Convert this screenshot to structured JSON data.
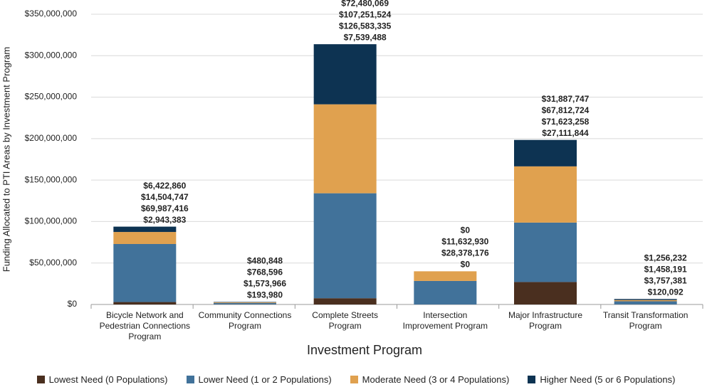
{
  "chart_data": {
    "type": "stacked-bar",
    "x_label": "Investment Program",
    "y_label": "Funding Allocated to PTI Areas by Investment Program",
    "categories": [
      "Bicycle Network and Pedestrian Connections Program",
      "Community Connections Program",
      "Complete Streets Program",
      "Intersection Improvement Program",
      "Major Infrastructure Program",
      "Transit Transformation Program"
    ],
    "series": [
      {
        "name": "Lowest Need (0 Populations)",
        "color": "#4a2f1f",
        "label_color": "#2a1b12",
        "values": [
          2943383,
          193980,
          7539488,
          0,
          27111844,
          120092
        ],
        "value_labels": [
          "$2,943,383",
          "$193,980",
          "$7,539,488",
          "$0",
          "$27,111,844",
          "$120,092"
        ]
      },
      {
        "name": "Lower Need (1 or 2 Populations)",
        "color": "#41729a",
        "label_color": "#4a7fab",
        "values": [
          69987416,
          1573966,
          126583335,
          28378176,
          71623258,
          3757381
        ],
        "value_labels": [
          "$69,987,416",
          "$1,573,966",
          "$126,583,335",
          "$28,378,176",
          "$71,623,258",
          "$3,757,381"
        ]
      },
      {
        "name": "Moderate Need (3 or 4 Populations)",
        "color": "#e0a14f",
        "label_color": "#e0a04e",
        "values": [
          14504747,
          768596,
          107251524,
          11632930,
          67812724,
          1458191
        ],
        "value_labels": [
          "$14,504,747",
          "$768,596",
          "$107,251,524",
          "$11,632,930",
          "$67,812,724",
          "$1,458,191"
        ]
      },
      {
        "name": "Higher Need (5 or 6 Populations)",
        "color": "#0d3352",
        "label_color": "#0d3352",
        "values": [
          6422860,
          480848,
          72480069,
          0,
          31887747,
          1256232
        ],
        "value_labels": [
          "$6,422,860",
          "$480,848",
          "$72,480,069",
          "$0",
          "$31,887,747",
          "$1,256,232"
        ]
      }
    ],
    "ylim": [
      0,
      350000000
    ],
    "yticks": [
      {
        "value": 0,
        "label": "$0"
      },
      {
        "value": 50000000,
        "label": "$50,000,000"
      },
      {
        "value": 100000000,
        "label": "$100,000,000"
      },
      {
        "value": 150000000,
        "label": "$150,000,000"
      },
      {
        "value": 200000000,
        "label": "$200,000,000"
      },
      {
        "value": 250000000,
        "label": "$250,000,000"
      },
      {
        "value": 300000000,
        "label": "$300,000,000"
      },
      {
        "value": 350000000,
        "label": "$350,000,000"
      }
    ],
    "grid": true
  }
}
